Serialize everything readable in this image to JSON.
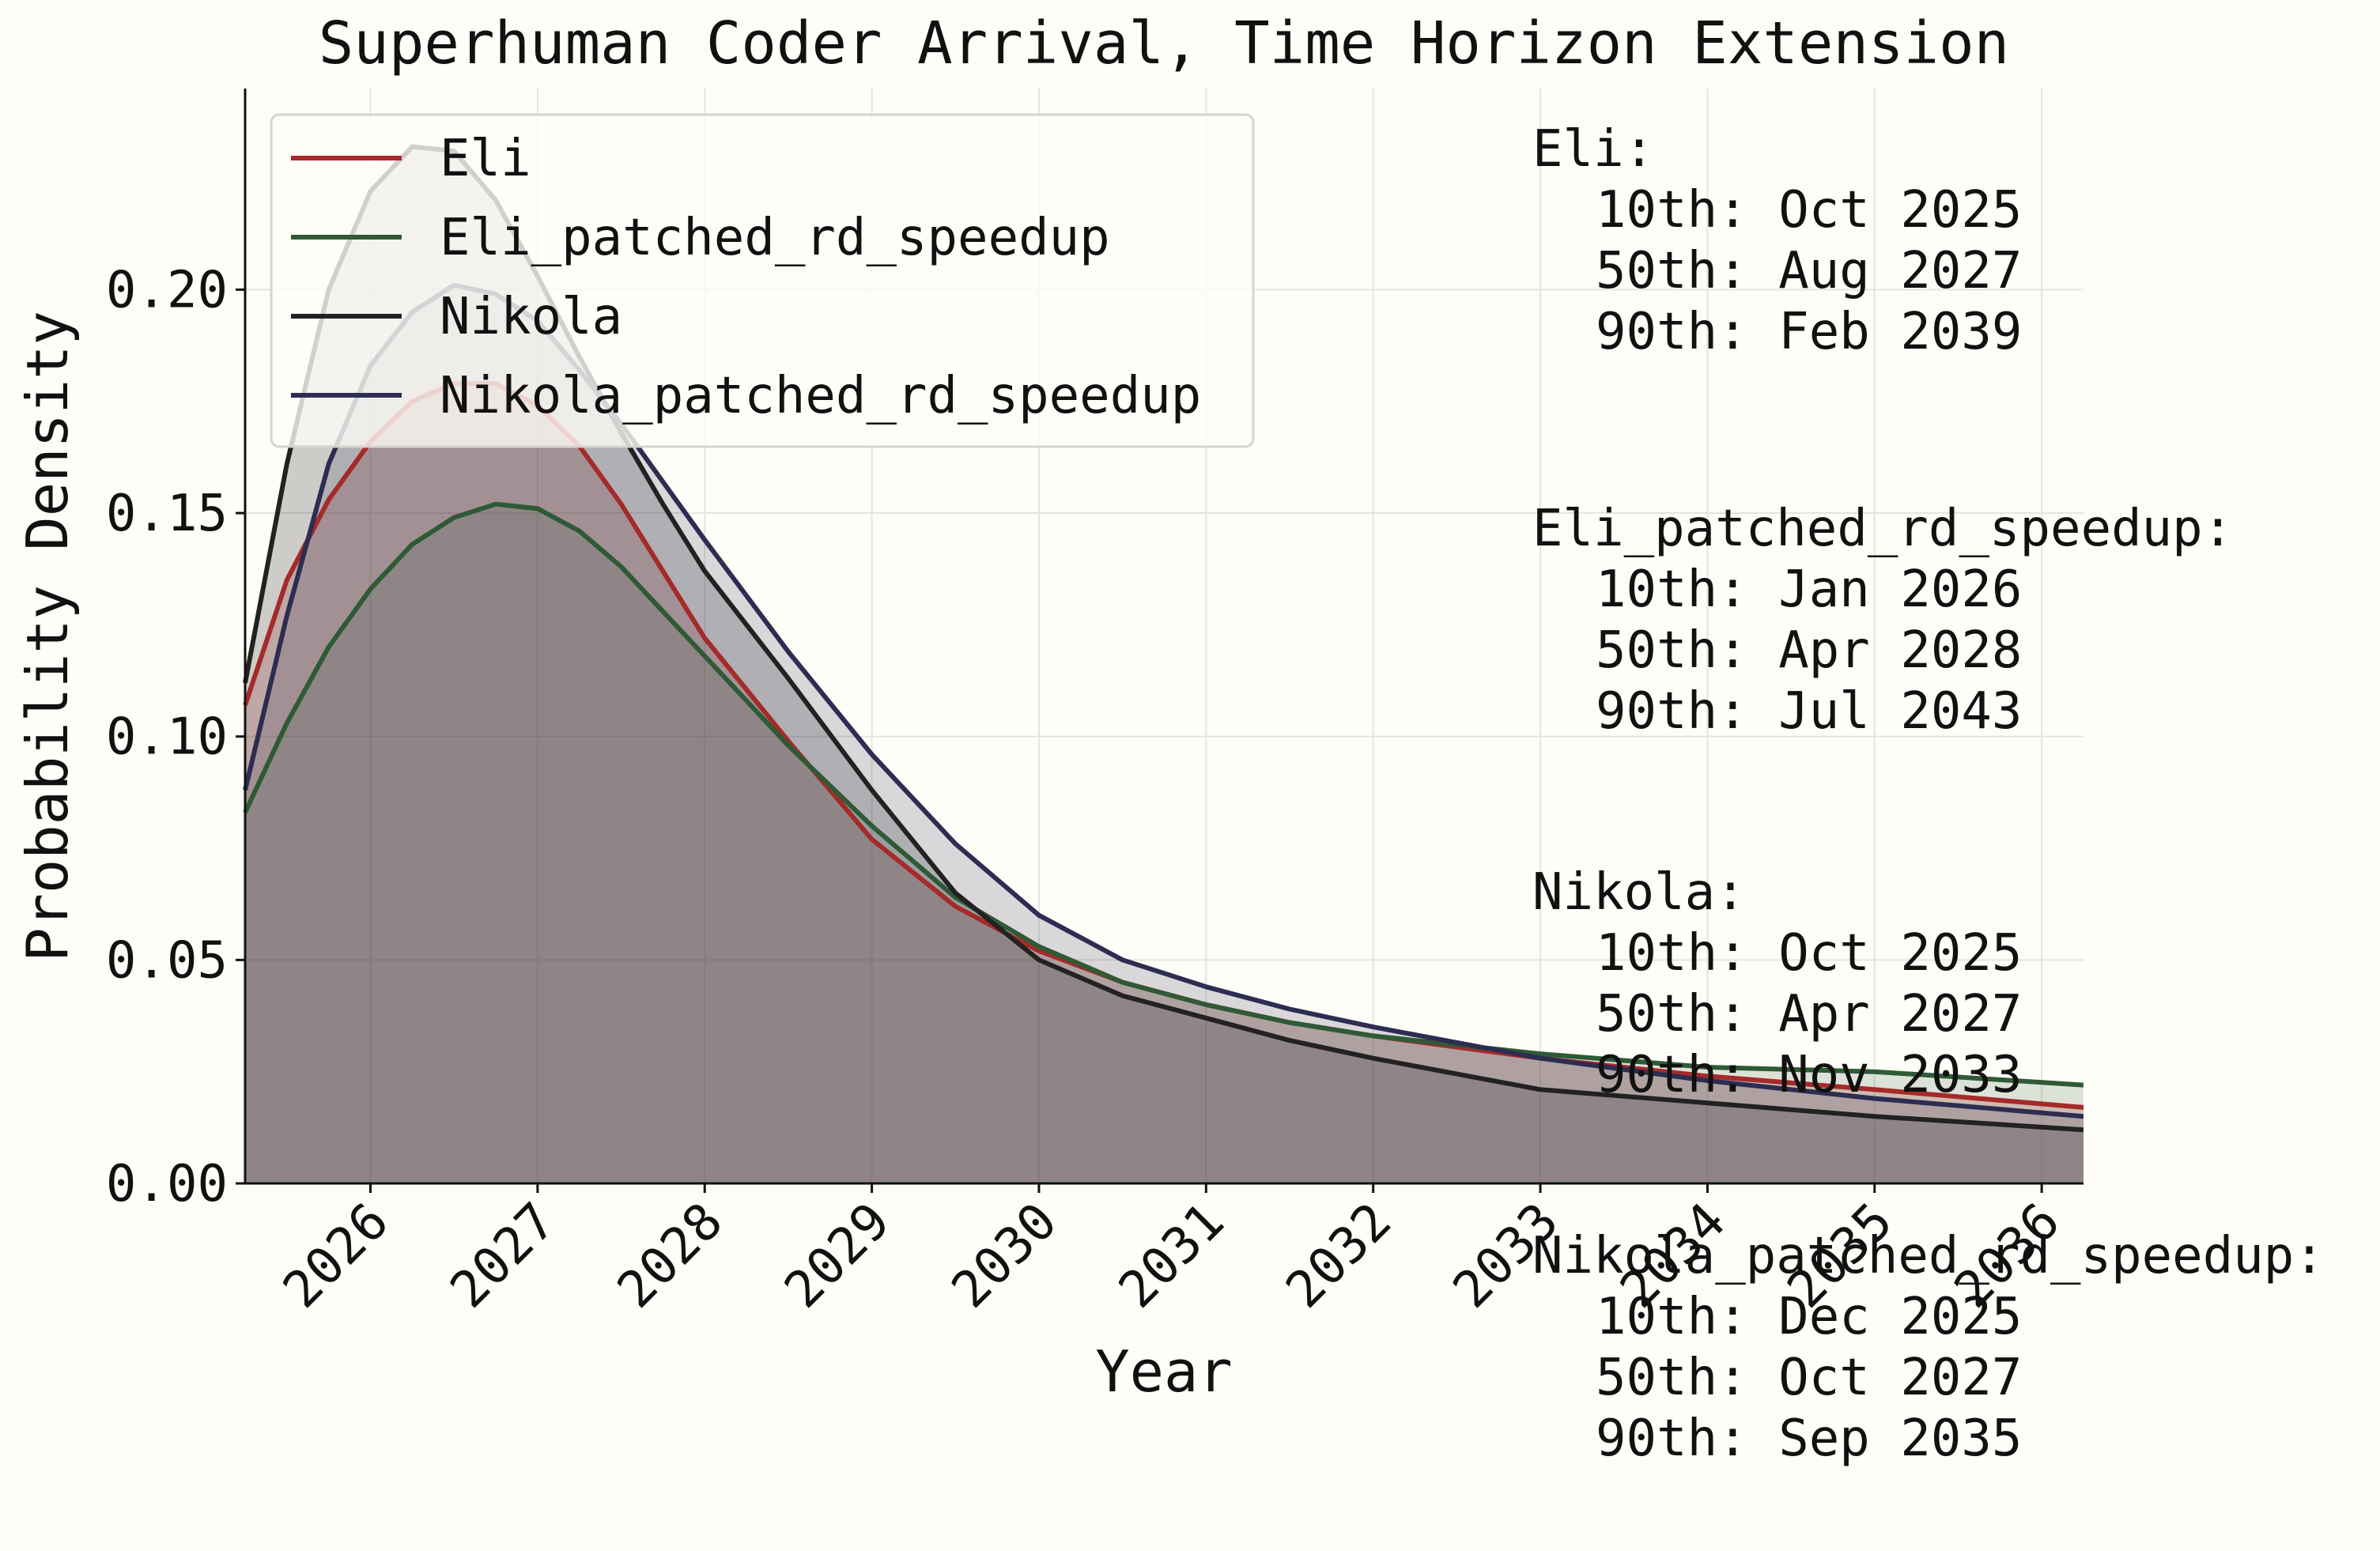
{
  "chart_data": {
    "type": "area",
    "title": "Superhuman Coder Arrival, Time Horizon Extension",
    "xlabel": "Year",
    "ylabel": "Probability Density",
    "xlim": [
      2025.25,
      2036.25
    ],
    "ylim": [
      0,
      0.245
    ],
    "x_ticks": [
      "2026",
      "2027",
      "2028",
      "2029",
      "2030",
      "2031",
      "2032",
      "2033",
      "2034",
      "2035",
      "2036"
    ],
    "y_ticks": [
      "0.00",
      "0.05",
      "0.10",
      "0.15",
      "0.20"
    ],
    "grid": true,
    "legend_position": "top-left",
    "series": [
      {
        "name": "Eli",
        "color": "#a52a2a",
        "fill_opacity": 0.22,
        "x": [
          2025.25,
          2025.5,
          2025.75,
          2026.0,
          2026.25,
          2026.5,
          2026.75,
          2027.0,
          2027.25,
          2027.5,
          2027.75,
          2028.0,
          2028.5,
          2029.0,
          2029.5,
          2030.0,
          2030.5,
          2031.0,
          2031.5,
          2032.0,
          2033.0,
          2034.0,
          2035.0,
          2036.25
        ],
        "values": [
          0.107,
          0.135,
          0.153,
          0.166,
          0.175,
          0.179,
          0.179,
          0.174,
          0.165,
          0.152,
          0.137,
          0.122,
          0.099,
          0.077,
          0.062,
          0.052,
          0.045,
          0.04,
          0.036,
          0.033,
          0.028,
          0.024,
          0.021,
          0.017
        ]
      },
      {
        "name": "Eli_patched_rd_speedup",
        "color": "#2e5a35",
        "fill_opacity": 0.16,
        "x": [
          2025.25,
          2025.5,
          2025.75,
          2026.0,
          2026.25,
          2026.5,
          2026.75,
          2027.0,
          2027.25,
          2027.5,
          2027.75,
          2028.0,
          2028.5,
          2029.0,
          2029.5,
          2030.0,
          2030.5,
          2031.0,
          2031.5,
          2032.0,
          2033.0,
          2034.0,
          2035.0,
          2036.25
        ],
        "values": [
          0.083,
          0.103,
          0.12,
          0.133,
          0.143,
          0.149,
          0.152,
          0.151,
          0.146,
          0.138,
          0.128,
          0.118,
          0.098,
          0.08,
          0.064,
          0.053,
          0.045,
          0.04,
          0.036,
          0.033,
          0.029,
          0.026,
          0.025,
          0.022
        ]
      },
      {
        "name": "Nikola",
        "color": "#222222",
        "fill_opacity": 0.22,
        "x": [
          2025.25,
          2025.5,
          2025.75,
          2026.0,
          2026.25,
          2026.5,
          2026.75,
          2027.0,
          2027.25,
          2027.5,
          2027.75,
          2028.0,
          2028.5,
          2029.0,
          2029.5,
          2030.0,
          2030.5,
          2031.0,
          2031.5,
          2032.0,
          2033.0,
          2034.0,
          2035.0,
          2036.25
        ],
        "values": [
          0.112,
          0.161,
          0.2,
          0.222,
          0.232,
          0.231,
          0.22,
          0.203,
          0.185,
          0.168,
          0.152,
          0.137,
          0.113,
          0.088,
          0.065,
          0.05,
          0.042,
          0.037,
          0.032,
          0.028,
          0.021,
          0.018,
          0.015,
          0.012
        ]
      },
      {
        "name": "Nikola_patched_rd_speedup",
        "color": "#2d2d52",
        "fill_opacity": 0.18,
        "x": [
          2025.25,
          2025.5,
          2025.75,
          2026.0,
          2026.25,
          2026.5,
          2026.75,
          2027.0,
          2027.25,
          2027.5,
          2027.75,
          2028.0,
          2028.5,
          2029.0,
          2029.5,
          2030.0,
          2030.5,
          2031.0,
          2031.5,
          2032.0,
          2033.0,
          2034.0,
          2035.0,
          2036.25
        ],
        "values": [
          0.088,
          0.127,
          0.161,
          0.183,
          0.195,
          0.201,
          0.199,
          0.193,
          0.182,
          0.17,
          0.157,
          0.144,
          0.119,
          0.096,
          0.076,
          0.06,
          0.05,
          0.044,
          0.039,
          0.035,
          0.028,
          0.023,
          0.019,
          0.015
        ]
      }
    ],
    "annotations": [
      {
        "label": "Eli:",
        "p10": "10th: Oct 2025",
        "p50": "50th: Aug 2027",
        "p90": "90th: Feb 2039"
      },
      {
        "label": "Eli_patched_rd_speedup:",
        "p10": "10th: Jan 2026",
        "p50": "50th: Apr 2028",
        "p90": "90th: Jul 2043"
      },
      {
        "label": "Nikola:",
        "p10": "10th: Oct 2025",
        "p50": "50th: Apr 2027",
        "p90": "90th: Nov 2033"
      },
      {
        "label": "Nikola_patched_rd_speedup:",
        "p10": "10th: Dec 2025",
        "p50": "50th: Oct 2027",
        "p90": "90th: Sep 2035"
      }
    ]
  },
  "colors": {
    "background": "#fffdf8",
    "grid": "#e6e4df",
    "axis": "#111111"
  }
}
